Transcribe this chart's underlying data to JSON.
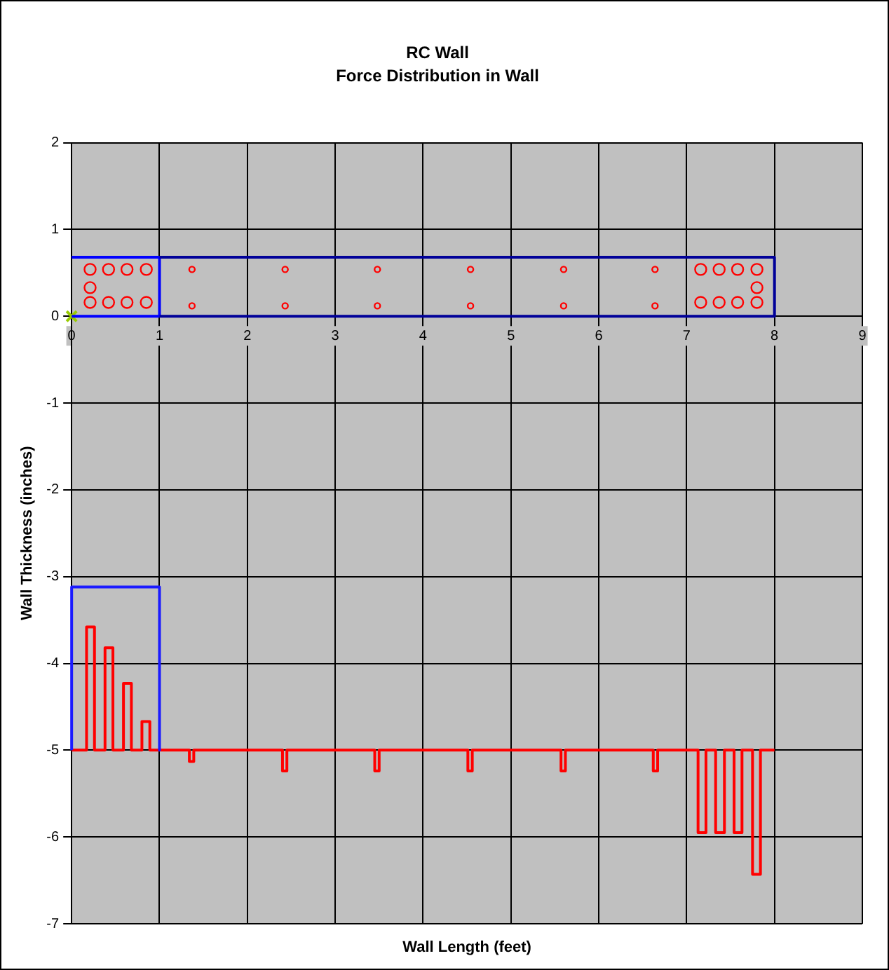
{
  "chart_data": {
    "type": "line",
    "title": "RC Wall",
    "subtitle": "Force Distribution in Wall",
    "xlabel": "Wall Length (feet)",
    "ylabel": "Wall Thickness (inches)",
    "xlim": [
      0,
      9
    ],
    "xticks": [
      0,
      1,
      2,
      3,
      4,
      5,
      6,
      7,
      8,
      9
    ],
    "ylim": [
      -7,
      2
    ],
    "yticks": [
      -7,
      -6,
      -5,
      -4,
      -3,
      -2,
      -1,
      0,
      1,
      2
    ],
    "grid": true,
    "legend": false,
    "series": [
      {
        "color": "#000099",
        "marker": "none",
        "x": [
          1,
          8,
          8,
          1
        ],
        "values": [
          0,
          0,
          0.68,
          0.68
        ]
      },
      {
        "color": "#0000ff",
        "marker": "none",
        "x": [
          0,
          1,
          1,
          0
        ],
        "values": [
          0,
          0,
          0.68,
          0.68
        ]
      },
      {
        "color": "#1a1aff",
        "marker": "none",
        "x": [
          0,
          0,
          1,
          1
        ],
        "values": [
          -5,
          -3.12,
          -3.12,
          -5
        ]
      },
      {
        "color": "#ff0000",
        "marker": "none",
        "x": [
          0,
          0.17,
          0.17,
          0.26,
          0.26,
          0.38,
          0.38,
          0.47,
          0.47,
          0.59,
          0.59,
          0.68,
          0.68,
          0.8,
          0.8,
          0.89,
          0.89,
          1.34,
          1.34,
          1.39,
          1.39,
          2.4,
          2.4,
          2.45,
          2.45,
          3.45,
          3.45,
          3.5,
          3.5,
          4.51,
          4.51,
          4.56,
          4.56,
          5.57,
          5.57,
          5.62,
          5.62,
          6.62,
          6.62,
          6.67,
          6.67,
          7.13,
          7.13,
          7.22,
          7.22,
          7.33,
          7.33,
          7.43,
          7.43,
          7.54,
          7.54,
          7.63,
          7.63,
          7.75,
          7.75,
          7.84,
          7.84,
          8
        ],
        "values": [
          -5,
          -5,
          -3.58,
          -3.58,
          -5,
          -5,
          -3.82,
          -3.82,
          -5,
          -5,
          -4.23,
          -4.23,
          -5,
          -5,
          -4.67,
          -4.67,
          -5,
          -5,
          -5.13,
          -5.13,
          -5,
          -5,
          -5.24,
          -5.24,
          -5,
          -5,
          -5.24,
          -5.24,
          -5,
          -5,
          -5.24,
          -5.24,
          -5,
          -5,
          -5.24,
          -5.24,
          -5,
          -5,
          -5.24,
          -5.24,
          -5,
          -5,
          -5.95,
          -5.95,
          -5,
          -5,
          -5.95,
          -5.95,
          -5,
          -5,
          -5.95,
          -5.95,
          -5,
          -5,
          -6.43,
          -6.43,
          -5,
          -5
        ]
      },
      {
        "type": "bubble",
        "color": "#ff0000",
        "x": [
          0.21,
          0.42,
          0.63,
          0.85,
          0.21,
          0.21,
          0.42,
          0.63,
          0.85,
          1.37,
          1.37,
          2.43,
          2.43,
          3.48,
          3.48,
          4.54,
          4.54,
          5.6,
          5.6,
          6.64,
          6.64,
          7.16,
          7.37,
          7.58,
          7.8,
          7.8,
          7.16,
          7.37,
          7.58,
          7.8
        ],
        "values": [
          0.54,
          0.54,
          0.54,
          0.54,
          0.33,
          0.16,
          0.16,
          0.16,
          0.16,
          0.54,
          0.12,
          0.54,
          0.12,
          0.54,
          0.12,
          0.54,
          0.12,
          0.54,
          0.12,
          0.54,
          0.12,
          0.54,
          0.54,
          0.54,
          0.54,
          0.33,
          0.16,
          0.16,
          0.16,
          0.16
        ],
        "sizes": [
          1,
          1,
          1,
          1,
          1,
          1,
          1,
          1,
          1,
          0.25,
          0.25,
          0.25,
          0.25,
          0.25,
          0.25,
          0.25,
          0.25,
          0.25,
          0.25,
          0.25,
          0.25,
          1,
          1,
          1,
          1,
          1,
          1,
          1,
          1,
          1
        ]
      },
      {
        "type": "scatter",
        "color": "#99cc00",
        "marker": "cross",
        "x": [
          0
        ],
        "values": [
          0
        ]
      }
    ]
  }
}
